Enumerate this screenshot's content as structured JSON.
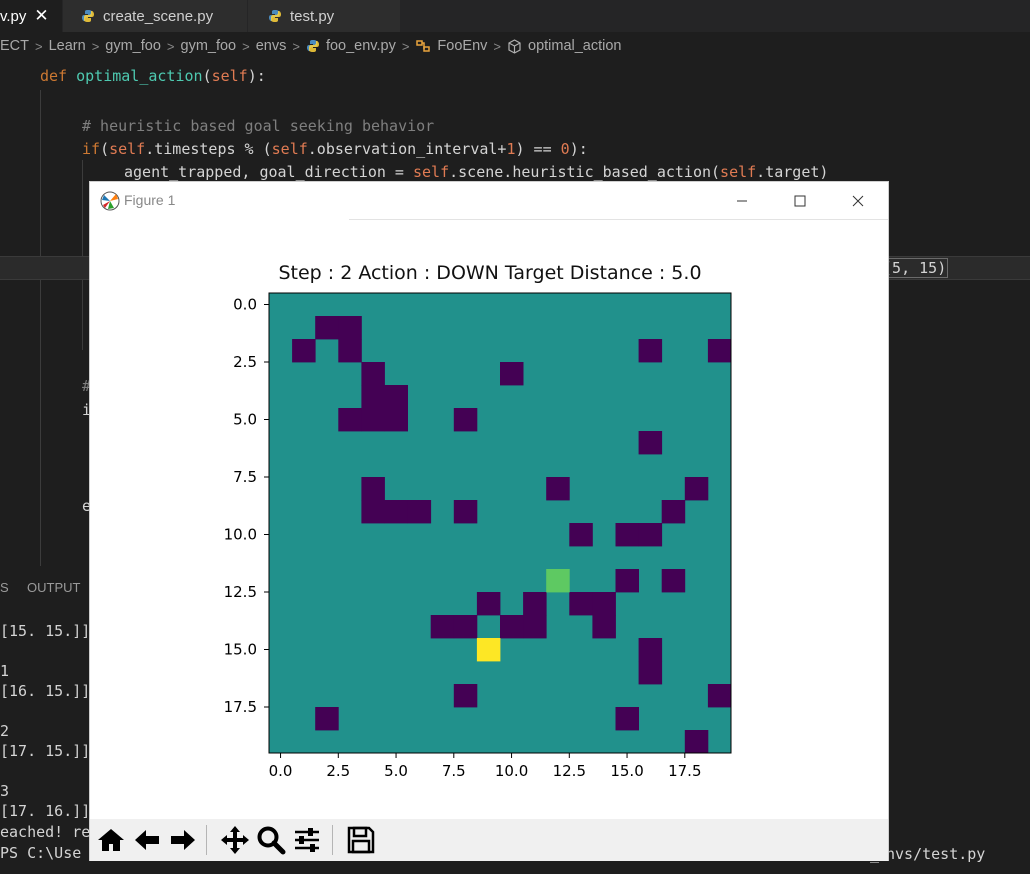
{
  "editor": {
    "tabs": [
      {
        "label": "v.py",
        "active": true
      },
      {
        "label": "create_scene.py",
        "active": false
      },
      {
        "label": "test.py",
        "active": false
      }
    ],
    "breadcrumb": [
      "ECT",
      "Learn",
      "gym_foo",
      "gym_foo",
      "envs",
      "foo_env.py",
      "FooEnv",
      "optimal_action"
    ],
    "code": {
      "l1_def": "def ",
      "l1_name": "optimal_action",
      "l1_rest": "(",
      "l1_self": "self",
      "l1_end": "):",
      "l2_comment": "# heuristic based goal seeking behavior",
      "l3_if": "if",
      "l3_paren": "(",
      "l3_self": "self",
      "l3_mid": ".timesteps % (",
      "l3_self2": "self",
      "l3_obs": ".observation_interval+",
      "l3_one": "1",
      "l3_eq": ") == ",
      "l3_zero": "0",
      "l3_end": "):",
      "l4_a": "agent_trapped, goal_direction = ",
      "l4_self": "self",
      "l4_b": ".scene.heuristic_based_action(",
      "l4_self2": "self",
      "l4_c": ".target)",
      "fragment_pre": "t",
      "fragment_box": "(5, 15)",
      "frag_left": "#",
      "frag_left2": "i",
      "frag_left3": "e"
    }
  },
  "panel": {
    "tabs": [
      "S",
      "OUTPUT"
    ],
    "terminal_lines": [
      "[15. 15.]]",
      "1",
      "[16. 15.]]",
      "2",
      "[17. 15.]]",
      "3",
      "[17. 16.]]",
      "eached! re",
      "PS C:\\Use"
    ],
    "terminal_right": "nvs/test.py",
    "terminal_mid": "_"
  },
  "figure": {
    "window_title": "Figure 1",
    "plot_title": "Step : 2 Action : DOWN Target Distance : 5.0",
    "toolbar": [
      "home-button",
      "back-button",
      "forward-button",
      "pan-button",
      "zoom-button",
      "configure-subplots-button",
      "save-button"
    ]
  },
  "chart_data": {
    "type": "heatmap",
    "title": "Step : 2 Action : DOWN Target Distance : 5.0",
    "colormap": "viridis",
    "grid_size": [
      20,
      20
    ],
    "x_ticks": [
      "0.0",
      "2.5",
      "5.0",
      "7.5",
      "10.0",
      "12.5",
      "15.0",
      "17.5"
    ],
    "y_ticks": [
      "0.0",
      "2.5",
      "5.0",
      "7.5",
      "10.0",
      "12.5",
      "15.0",
      "17.5"
    ],
    "xlim": [
      -0.5,
      19.5
    ],
    "ylim": [
      19.5,
      -0.5
    ],
    "background_value": 1,
    "colors": {
      "0": "#440154",
      "1": "#21918c",
      "2": "#5ec962",
      "3": "#fde725"
    },
    "cells_value0": [
      [
        1,
        2
      ],
      [
        1,
        3
      ],
      [
        2,
        1
      ],
      [
        2,
        3
      ],
      [
        2,
        16
      ],
      [
        2,
        19
      ],
      [
        3,
        4
      ],
      [
        3,
        10
      ],
      [
        4,
        4
      ],
      [
        4,
        5
      ],
      [
        5,
        3
      ],
      [
        5,
        4
      ],
      [
        5,
        5
      ],
      [
        5,
        8
      ],
      [
        6,
        16
      ],
      [
        8,
        4
      ],
      [
        8,
        12
      ],
      [
        8,
        18
      ],
      [
        9,
        4
      ],
      [
        9,
        5
      ],
      [
        9,
        6
      ],
      [
        9,
        8
      ],
      [
        9,
        17
      ],
      [
        10,
        13
      ],
      [
        10,
        15
      ],
      [
        10,
        16
      ],
      [
        12,
        15
      ],
      [
        12,
        17
      ],
      [
        13,
        9
      ],
      [
        13,
        11
      ],
      [
        13,
        13
      ],
      [
        13,
        14
      ],
      [
        14,
        7
      ],
      [
        14,
        8
      ],
      [
        14,
        10
      ],
      [
        14,
        11
      ],
      [
        14,
        14
      ],
      [
        15,
        16
      ],
      [
        16,
        16
      ],
      [
        17,
        8
      ],
      [
        17,
        19
      ],
      [
        18,
        2
      ],
      [
        18,
        15
      ],
      [
        19,
        18
      ]
    ],
    "cells_value2": [
      [
        12,
        12
      ]
    ],
    "cells_value3": [
      [
        15,
        9
      ]
    ]
  }
}
